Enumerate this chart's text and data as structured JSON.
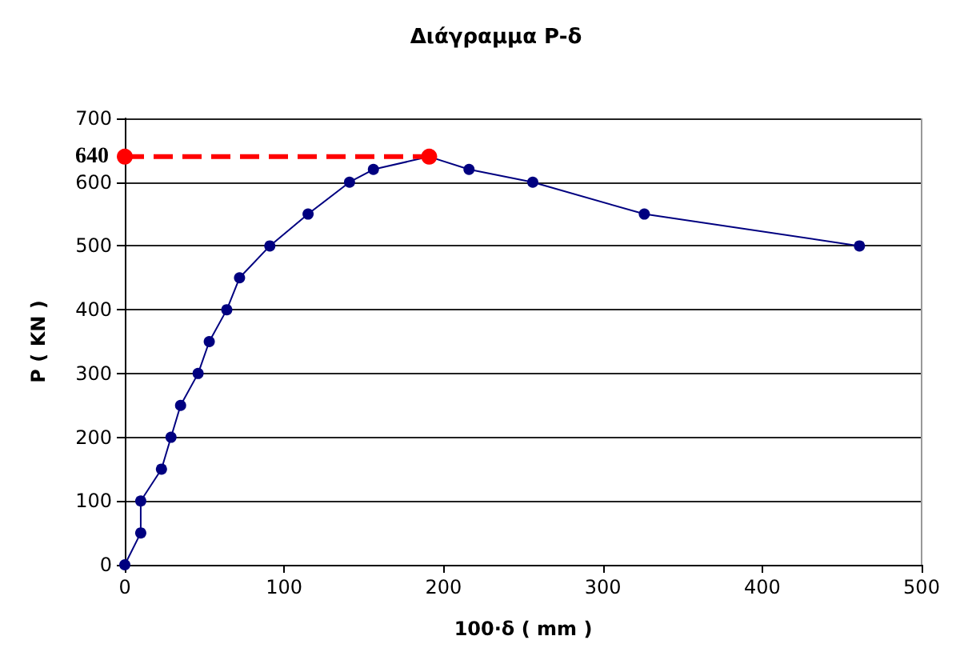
{
  "chart_data": {
    "type": "line",
    "title": "Διάγραμμα P-δ",
    "xlabel": "100·δ ( mm )",
    "ylabel": "P ( KN )",
    "series": [
      {
        "color": "#000080",
        "x": [
          0,
          10,
          10,
          23,
          29,
          35,
          46,
          53,
          64,
          72,
          91,
          115,
          141,
          156,
          191,
          216,
          256,
          326,
          461
        ],
        "values": [
          0,
          50,
          100,
          150,
          200,
          250,
          300,
          350,
          400,
          450,
          500,
          550,
          600,
          620,
          640,
          620,
          600,
          550,
          500
        ],
        "line_style": "solid"
      },
      {
        "color": "#ff0000",
        "x": [
          0,
          191
        ],
        "values": [
          640,
          640
        ],
        "line_style": "dashed"
      }
    ],
    "annotations": [
      {
        "text": "640",
        "x": 0,
        "y": 640
      }
    ],
    "xlim": [
      0,
      500
    ],
    "xticks": [
      0,
      100,
      200,
      300,
      400,
      500
    ],
    "ylim": [
      0,
      700
    ],
    "yticks": [
      0,
      100,
      200,
      300,
      400,
      500,
      600,
      700
    ],
    "grid": "y",
    "marker": "circle"
  }
}
